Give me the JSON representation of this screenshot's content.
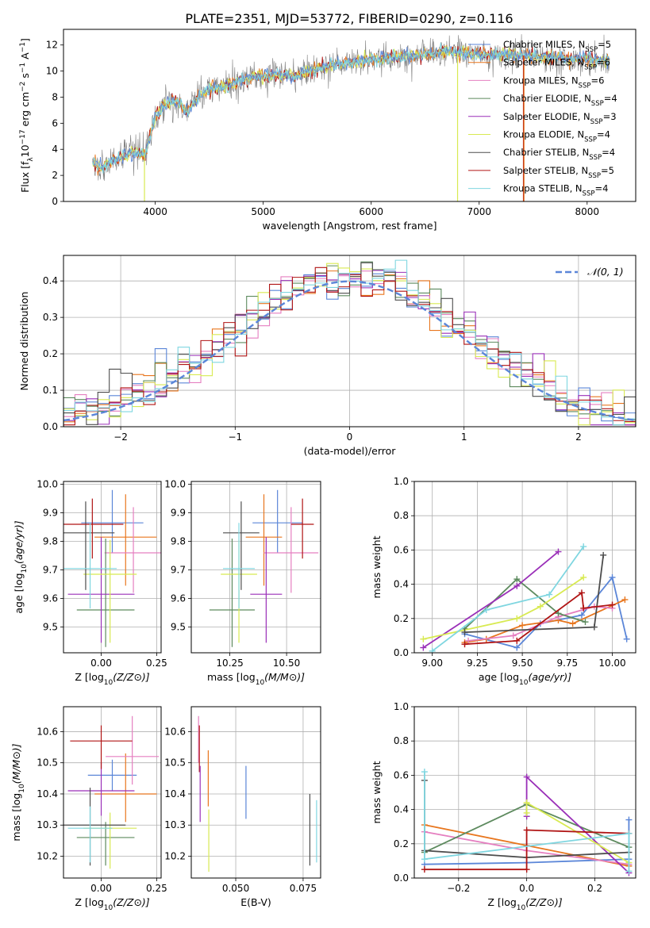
{
  "figure_title": "PLATE=2351, MJD=53772, FIBERID=0290, z=0.116",
  "colors": {
    "Chabrier MILES": "#5b86d8",
    "Salpeter MILES": "#e8761e",
    "Kroupa MILES": "#e57fc0",
    "Chabrier ELODIE": "#5d8a5e",
    "Salpeter ELODIE": "#9a2fb8",
    "Kroupa ELODIE": "#d8ea52",
    "Chabrier STELIB": "#4d4d4d",
    "Salpeter STELIB": "#b01414",
    "Kroupa STELIB": "#7fd6e0",
    "normal": "#5b86d8",
    "grid": "#b0b0b0"
  },
  "chart_data": [
    {
      "id": "spectrum",
      "type": "line",
      "xlabel": "wavelength [Angstrom, rest frame]",
      "ylabel": "Flux [f_λ10^-17 erg cm^-2 s^-1 A^-1]",
      "xlim": [
        3150,
        8450
      ],
      "ylim": [
        0,
        13.2
      ],
      "xticks": [
        4000,
        5000,
        6000,
        7000,
        8000
      ],
      "yticks": [
        0,
        2,
        4,
        6,
        8,
        10,
        12
      ],
      "grid": false,
      "legend_position": "lower-right",
      "legend": [
        {
          "name": "Chabrier MILES",
          "nssp": "5"
        },
        {
          "name": "Salpeter MILES",
          "nssp": "6"
        },
        {
          "name": "Kroupa MILES",
          "nssp": "6"
        },
        {
          "name": "Chabrier ELODIE",
          "nssp": "4"
        },
        {
          "name": "Salpeter ELODIE",
          "nssp": "3"
        },
        {
          "name": "Kroupa ELODIE",
          "nssp": "4"
        },
        {
          "name": "Chabrier STELIB",
          "nssp": "4"
        },
        {
          "name": "Salpeter STELIB",
          "nssp": "5"
        },
        {
          "name": "Kroupa STELIB",
          "nssp": "4"
        }
      ],
      "continuum": [
        [
          3420,
          3.0
        ],
        [
          3500,
          2.6
        ],
        [
          3600,
          3.0
        ],
        [
          3700,
          3.5
        ],
        [
          3800,
          3.8
        ],
        [
          3900,
          3.6
        ],
        [
          3950,
          5.0
        ],
        [
          4000,
          6.5
        ],
        [
          4100,
          7.5
        ],
        [
          4200,
          7.7
        ],
        [
          4300,
          6.8
        ],
        [
          4400,
          8.1
        ],
        [
          4500,
          8.6
        ],
        [
          4600,
          8.8
        ],
        [
          4700,
          9.0
        ],
        [
          4800,
          9.3
        ],
        [
          4900,
          9.6
        ],
        [
          5000,
          9.6
        ],
        [
          5100,
          9.7
        ],
        [
          5200,
          9.7
        ],
        [
          5300,
          9.6
        ],
        [
          5400,
          9.9
        ],
        [
          5500,
          10.2
        ],
        [
          5600,
          10.4
        ],
        [
          5700,
          10.6
        ],
        [
          5800,
          10.6
        ],
        [
          5900,
          10.8
        ],
        [
          6000,
          10.9
        ],
        [
          6100,
          11.0
        ],
        [
          6200,
          11.1
        ],
        [
          6300,
          11.1
        ],
        [
          6400,
          11.2
        ],
        [
          6500,
          11.3
        ],
        [
          6600,
          11.4
        ],
        [
          6700,
          11.5
        ],
        [
          6800,
          11.4
        ],
        [
          6900,
          11.4
        ],
        [
          7000,
          11.3
        ],
        [
          7100,
          11.3
        ],
        [
          7200,
          11.3
        ],
        [
          7400,
          11.2
        ],
        [
          7600,
          11.1
        ],
        [
          7800,
          11.0
        ],
        [
          8000,
          10.9
        ],
        [
          8200,
          10.8
        ]
      ]
    },
    {
      "id": "residual_hist",
      "type": "bar",
      "xlabel": "(data-model)/error",
      "ylabel": "Normed distribution",
      "xlim": [
        -2.5,
        2.5
      ],
      "ylim": [
        0,
        0.47
      ],
      "xticks": [
        -2,
        -1,
        0,
        1,
        2
      ],
      "yticks": [
        0.0,
        0.1,
        0.2,
        0.3,
        0.4
      ],
      "grid": true,
      "legend_position": "top-right",
      "reference_curve": {
        "name": "𝒩(0, 1)",
        "mean": 0,
        "sigma": 1
      },
      "bin_width": 0.1
    },
    {
      "id": "age_vs_Z",
      "type": "scatter",
      "xlabel": "Z [log10(Z/Z⊙)]",
      "ylabel": "age  [log10(age/yr)]",
      "xlim": [
        -0.17,
        0.27
      ],
      "ylim": [
        9.41,
        10.01
      ],
      "xticks": [
        0.0,
        0.25
      ],
      "yticks": [
        9.5,
        9.6,
        9.7,
        9.8,
        9.9,
        10.0
      ],
      "grid": true,
      "points": [
        {
          "series": "Chabrier MILES",
          "x": 0.05,
          "y": 9.865,
          "xerr": 0.14,
          "yerr_lo": 0.105,
          "yerr_hi": 0.115
        },
        {
          "series": "Salpeter MILES",
          "x": 0.11,
          "y": 9.815,
          "xerr": 0.14,
          "yerr_lo": 0.17,
          "yerr_hi": 0.15
        },
        {
          "series": "Kroupa MILES",
          "x": 0.145,
          "y": 9.76,
          "xerr": 0.13,
          "yerr_lo": 0.14,
          "yerr_hi": 0.16
        },
        {
          "series": "Chabrier ELODIE",
          "x": 0.02,
          "y": 9.56,
          "xerr": 0.13,
          "yerr_lo": 0.13,
          "yerr_hi": 0.25
        },
        {
          "series": "Salpeter ELODIE",
          "x": 0.0,
          "y": 9.615,
          "xerr": 0.15,
          "yerr_lo": 0.17,
          "yerr_hi": 0.2
        },
        {
          "series": "Kroupa ELODIE",
          "x": 0.04,
          "y": 9.685,
          "xerr": 0.12,
          "yerr_lo": 0.24,
          "yerr_hi": 0.12
        },
        {
          "series": "Chabrier STELIB",
          "x": -0.07,
          "y": 9.83,
          "xerr": 0.13,
          "yerr_lo": 0.2,
          "yerr_hi": 0.11
        },
        {
          "series": "Salpeter STELIB",
          "x": -0.04,
          "y": 9.86,
          "xerr": 0.14,
          "yerr_lo": 0.12,
          "yerr_hi": 0.09
        },
        {
          "series": "Kroupa STELIB",
          "x": -0.05,
          "y": 9.705,
          "xerr": 0.12,
          "yerr_lo": 0.14,
          "yerr_hi": 0.16
        }
      ]
    },
    {
      "id": "age_vs_mass",
      "type": "scatter",
      "xlabel": "mass [log10(M/M⊙)]",
      "ylabel": "",
      "xlim": [
        10.08,
        10.65
      ],
      "ylim": [
        9.41,
        10.01
      ],
      "xticks": [
        10.25,
        10.5
      ],
      "yticks": [
        9.5,
        9.6,
        9.7,
        9.8,
        9.9,
        10.0
      ],
      "grid": true,
      "points": [
        {
          "series": "Chabrier MILES",
          "x": 10.46,
          "y": 9.865,
          "xerr": 0.11,
          "yerr_lo": 0.105,
          "yerr_hi": 0.115
        },
        {
          "series": "Salpeter MILES",
          "x": 10.4,
          "y": 9.815,
          "xerr": 0.08,
          "yerr_lo": 0.17,
          "yerr_hi": 0.15
        },
        {
          "series": "Kroupa MILES",
          "x": 10.52,
          "y": 9.76,
          "xerr": 0.12,
          "yerr_lo": 0.14,
          "yerr_hi": 0.16
        },
        {
          "series": "Chabrier ELODIE",
          "x": 10.26,
          "y": 9.56,
          "xerr": 0.1,
          "yerr_lo": 0.13,
          "yerr_hi": 0.25
        },
        {
          "series": "Salpeter ELODIE",
          "x": 10.41,
          "y": 9.615,
          "xerr": 0.07,
          "yerr_lo": 0.17,
          "yerr_hi": 0.2
        },
        {
          "series": "Kroupa ELODIE",
          "x": 10.29,
          "y": 9.685,
          "xerr": 0.08,
          "yerr_lo": 0.24,
          "yerr_hi": 0.12
        },
        {
          "series": "Chabrier STELIB",
          "x": 10.3,
          "y": 9.83,
          "xerr": 0.08,
          "yerr_lo": 0.2,
          "yerr_hi": 0.11
        },
        {
          "series": "Salpeter STELIB",
          "x": 10.57,
          "y": 9.86,
          "xerr": 0.05,
          "yerr_lo": 0.12,
          "yerr_hi": 0.09
        },
        {
          "series": "Kroupa STELIB",
          "x": 10.29,
          "y": 9.705,
          "xerr": 0.07,
          "yerr_lo": 0.14,
          "yerr_hi": 0.16
        }
      ]
    },
    {
      "id": "weight_vs_age",
      "type": "line",
      "xlabel": "age  [log10(age/yr)]",
      "ylabel": "mass weight",
      "xlim": [
        8.9,
        10.13
      ],
      "ylim": [
        0,
        1.0
      ],
      "xticks": [
        9.0,
        9.25,
        9.5,
        9.75,
        10.0
      ],
      "yticks": [
        0.0,
        0.2,
        0.4,
        0.6,
        0.8,
        1.0
      ],
      "grid": true,
      "series": [
        {
          "name": "Chabrier MILES",
          "x": [
            9.18,
            9.47,
            9.6,
            9.83,
            10.0,
            10.08
          ],
          "y": [
            0.11,
            0.03,
            0.17,
            0.22,
            0.44,
            0.08
          ]
        },
        {
          "name": "Salpeter MILES",
          "x": [
            9.18,
            9.3,
            9.5,
            9.7,
            9.78,
            10.07
          ],
          "y": [
            0.06,
            0.08,
            0.16,
            0.19,
            0.17,
            0.31
          ]
        },
        {
          "name": "Kroupa MILES",
          "x": [
            9.2,
            9.45,
            9.7,
            9.9,
            10.0
          ],
          "y": [
            0.07,
            0.1,
            0.21,
            0.27,
            0.26
          ]
        },
        {
          "name": "Chabrier ELODIE",
          "x": [
            9.18,
            9.47,
            9.7,
            9.85
          ],
          "y": [
            0.14,
            0.43,
            0.23,
            0.18
          ]
        },
        {
          "name": "Salpeter ELODIE",
          "x": [
            8.95,
            9.47,
            9.7
          ],
          "y": [
            0.03,
            0.39,
            0.59
          ]
        },
        {
          "name": "Kroupa ELODIE",
          "x": [
            8.95,
            9.47,
            9.6,
            9.84
          ],
          "y": [
            0.08,
            0.2,
            0.27,
            0.44
          ]
        },
        {
          "name": "Chabrier STELIB",
          "x": [
            9.18,
            9.9,
            9.95
          ],
          "y": [
            0.12,
            0.15,
            0.57
          ]
        },
        {
          "name": "Salpeter STELIB",
          "x": [
            9.18,
            9.47,
            9.83,
            9.84,
            10.0
          ],
          "y": [
            0.05,
            0.07,
            0.35,
            0.26,
            0.28
          ]
        },
        {
          "name": "Kroupa STELIB",
          "x": [
            9.0,
            9.3,
            9.65,
            9.84
          ],
          "y": [
            0.01,
            0.25,
            0.34,
            0.62
          ]
        }
      ]
    },
    {
      "id": "mass_vs_Z",
      "type": "scatter",
      "xlabel": "Z [log10(Z/Z⊙)]",
      "ylabel": "mass [log10(M/M⊙)]",
      "xlim": [
        -0.17,
        0.27
      ],
      "ylim": [
        10.13,
        10.68
      ],
      "xticks": [
        0.0,
        0.25
      ],
      "yticks": [
        10.2,
        10.3,
        10.4,
        10.5,
        10.6
      ],
      "grid": true,
      "points": [
        {
          "series": "Chabrier MILES",
          "x": 0.05,
          "y": 10.46,
          "xerr": 0.11,
          "yerr_lo": 0.05,
          "yerr_hi": 0.05
        },
        {
          "series": "Salpeter MILES",
          "x": 0.11,
          "y": 10.4,
          "xerr": 0.14,
          "yerr_lo": 0.09,
          "yerr_hi": 0.13
        },
        {
          "series": "Kroupa MILES",
          "x": 0.14,
          "y": 10.52,
          "xerr": 0.12,
          "yerr_lo": 0.09,
          "yerr_hi": 0.13
        },
        {
          "series": "Chabrier ELODIE",
          "x": 0.02,
          "y": 10.26,
          "xerr": 0.13,
          "yerr_lo": 0.09,
          "yerr_hi": 0.05
        },
        {
          "series": "Salpeter ELODIE",
          "x": 0.0,
          "y": 10.41,
          "xerr": 0.15,
          "yerr_lo": 0.08,
          "yerr_hi": 0.09
        },
        {
          "series": "Kroupa ELODIE",
          "x": 0.04,
          "y": 10.29,
          "xerr": 0.12,
          "yerr_lo": 0.13,
          "yerr_hi": 0.05
        },
        {
          "series": "Chabrier STELIB",
          "x": -0.05,
          "y": 10.3,
          "xerr": 0.16,
          "yerr_lo": 0.13,
          "yerr_hi": 0.12
        },
        {
          "series": "Salpeter STELIB",
          "x": 0.0,
          "y": 10.57,
          "xerr": 0.14,
          "yerr_lo": 0.09,
          "yerr_hi": 0.05
        },
        {
          "series": "Kroupa STELIB",
          "x": -0.05,
          "y": 10.29,
          "xerr": 0.1,
          "yerr_lo": 0.11,
          "yerr_hi": 0.07
        }
      ]
    },
    {
      "id": "mass_vs_ebv",
      "type": "scatter",
      "xlabel": "E(B-V)",
      "ylabel": "",
      "xlim": [
        0.0335,
        0.0815
      ],
      "ylim": [
        10.13,
        10.68
      ],
      "xticks": [
        0.05,
        0.075
      ],
      "yticks": [
        10.2,
        10.3,
        10.4,
        10.5,
        10.6
      ],
      "grid": true,
      "points": [
        {
          "series": "Kroupa MILES",
          "x": 0.0362,
          "y": 10.57,
          "yerr_lo": 0.07,
          "yerr_hi": 0.08
        },
        {
          "series": "Salpeter STELIB",
          "x": 0.0365,
          "y": 10.54,
          "yerr_lo": 0.07,
          "yerr_hi": 0.08
        },
        {
          "series": "Salpeter ELODIE",
          "x": 0.0368,
          "y": 10.4,
          "yerr_lo": 0.09,
          "yerr_hi": 0.09
        },
        {
          "series": "Salpeter MILES",
          "x": 0.0398,
          "y": 10.45,
          "yerr_lo": 0.09,
          "yerr_hi": 0.09
        },
        {
          "series": "Kroupa ELODIE",
          "x": 0.04,
          "y": 10.3,
          "yerr_lo": 0.15,
          "yerr_hi": 0.05
        },
        {
          "series": "Chabrier MILES",
          "x": 0.0538,
          "y": 10.4,
          "yerr_lo": 0.08,
          "yerr_hi": 0.09
        },
        {
          "series": "Chabrier STELIB",
          "x": 0.0775,
          "y": 10.29,
          "yerr_lo": 0.12,
          "yerr_hi": 0.11
        },
        {
          "series": "Kroupa STELIB",
          "x": 0.08,
          "y": 10.28,
          "yerr_lo": 0.1,
          "yerr_hi": 0.1
        }
      ]
    },
    {
      "id": "weight_vs_Z",
      "type": "line",
      "xlabel": "Z [log10(Z/Z⊙)]",
      "ylabel": "mass weight",
      "xlim": [
        -0.33,
        0.32
      ],
      "ylim": [
        0,
        1.0
      ],
      "xticks": [
        -0.2,
        0.0,
        0.2
      ],
      "yticks": [
        0.0,
        0.2,
        0.4,
        0.6,
        0.8,
        1.0
      ],
      "grid": true,
      "series": [
        {
          "name": "Chabrier MILES",
          "x": [
            -0.3,
            0.0,
            0.3,
            0.3
          ],
          "y": [
            0.08,
            0.09,
            0.11,
            0.34
          ]
        },
        {
          "name": "Salpeter MILES",
          "x": [
            -0.3,
            0.0,
            0.3
          ],
          "y": [
            0.31,
            0.19,
            0.07
          ]
        },
        {
          "name": "Kroupa MILES",
          "x": [
            -0.3,
            0.0,
            0.3
          ],
          "y": [
            0.27,
            0.16,
            0.08
          ]
        },
        {
          "name": "Chabrier ELODIE",
          "x": [
            -0.3,
            0.0,
            0.3
          ],
          "y": [
            0.15,
            0.43,
            0.18
          ]
        },
        {
          "name": "Salpeter ELODIE",
          "x": [
            0.0,
            0.0,
            0.3
          ],
          "y": [
            0.36,
            0.59,
            0.03
          ]
        },
        {
          "name": "Kroupa ELODIE",
          "x": [
            0.0,
            0.0,
            0.3
          ],
          "y": [
            0.38,
            0.44,
            0.09
          ]
        },
        {
          "name": "Chabrier STELIB",
          "x": [
            -0.3,
            -0.3,
            0.0,
            0.3
          ],
          "y": [
            0.57,
            0.16,
            0.12,
            0.15
          ]
        },
        {
          "name": "Salpeter STELIB",
          "x": [
            -0.3,
            0.0,
            0.0,
            0.3
          ],
          "y": [
            0.05,
            0.05,
            0.28,
            0.26
          ]
        },
        {
          "name": "Kroupa STELIB",
          "x": [
            -0.3,
            -0.3,
            0.3,
            0.3
          ],
          "y": [
            0.62,
            0.11,
            0.26,
            0.04
          ]
        }
      ]
    }
  ]
}
